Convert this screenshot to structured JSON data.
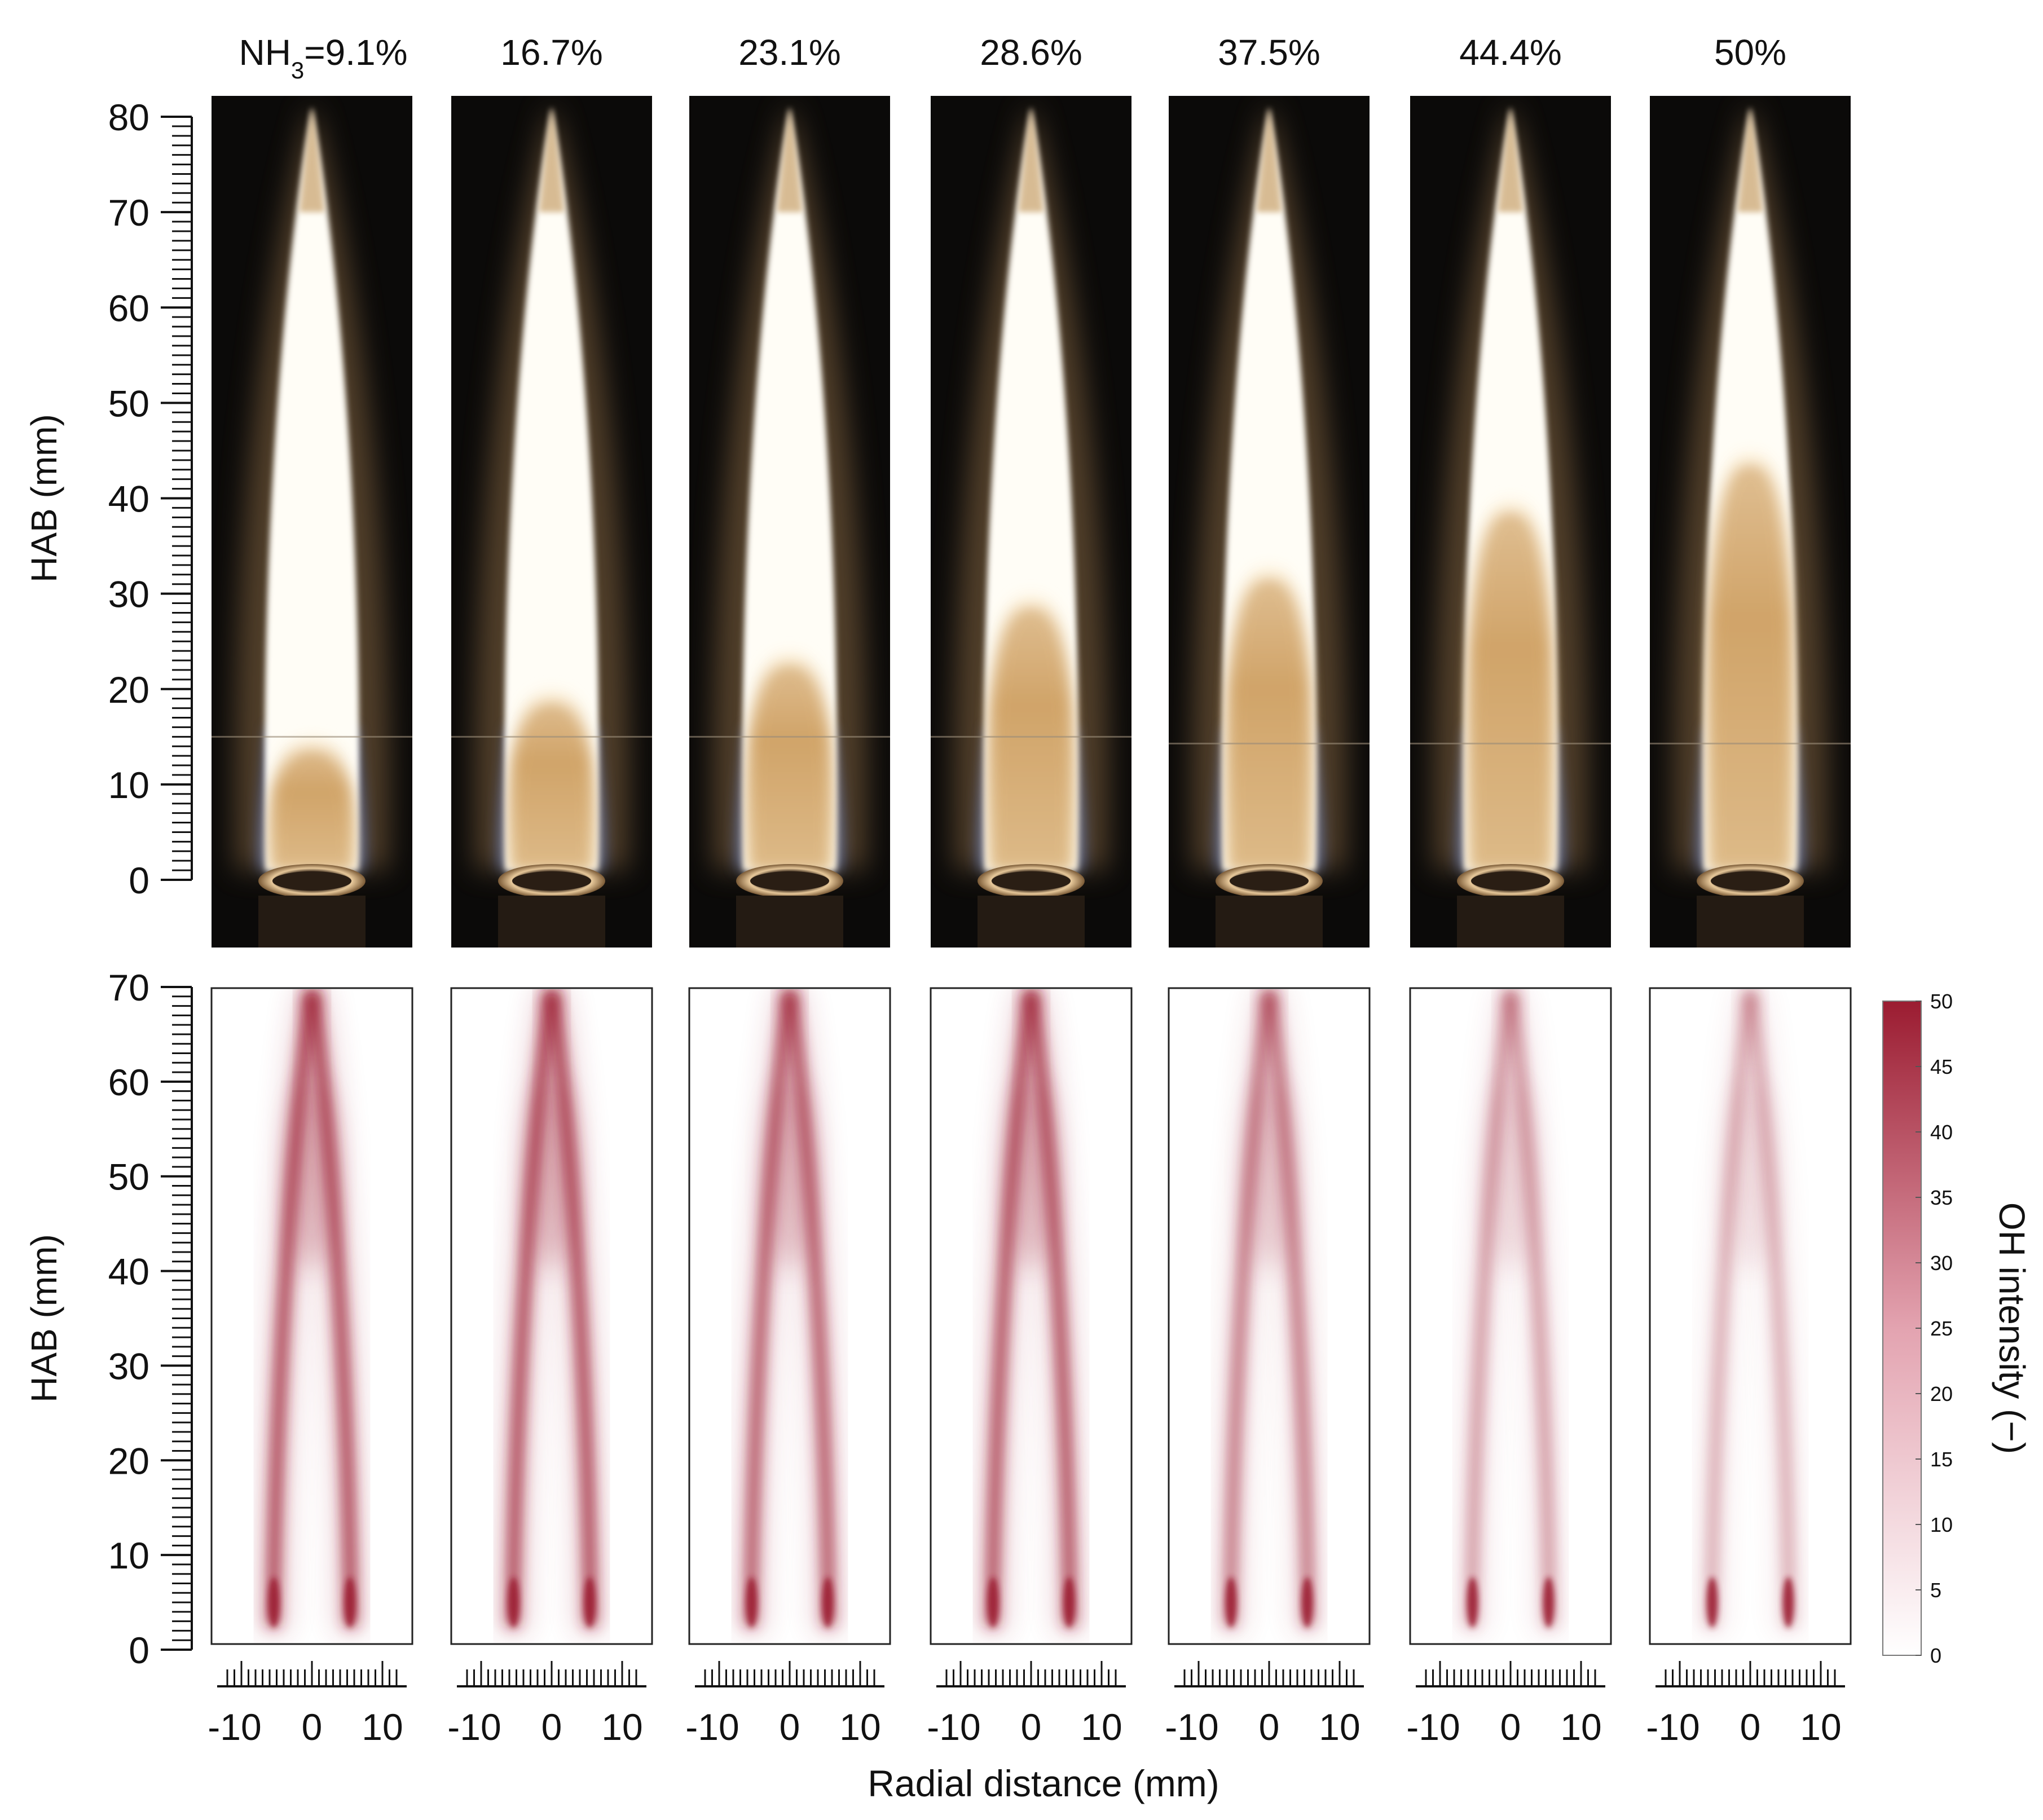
{
  "figure": {
    "columns": [
      {
        "label_prefix": "NH",
        "label_sub": "3",
        "label_main": "=9.1%",
        "x_ticks": [
          "-10",
          "0",
          "10"
        ]
      },
      {
        "label_main": "16.7%",
        "x_ticks": [
          "-10",
          "0",
          "10"
        ]
      },
      {
        "label_main": "23.1%",
        "x_ticks": [
          "-10",
          "0",
          "10"
        ]
      },
      {
        "label_main": "28.6%",
        "x_ticks": [
          "-10",
          "0",
          "10"
        ]
      },
      {
        "label_main": "37.5%",
        "x_ticks": [
          "-10",
          "0",
          "10"
        ]
      },
      {
        "label_main": "44.4%",
        "x_ticks": [
          "-10",
          "0",
          "10"
        ]
      },
      {
        "label_main": "50%",
        "x_ticks": [
          "-10",
          "0",
          "10"
        ]
      }
    ],
    "top_panel": {
      "ylabel": "HAB (mm)",
      "y_ticks": [
        "0",
        "10",
        "20",
        "30",
        "40",
        "50",
        "60",
        "70",
        "80"
      ],
      "ylim": [
        0,
        80
      ],
      "sooty_tip_start_mm": [
        15,
        20,
        24,
        30,
        33,
        40,
        45
      ]
    },
    "bottom_panel": {
      "ylabel": "HAB (mm)",
      "y_ticks": [
        "0",
        "10",
        "20",
        "30",
        "40",
        "50",
        "60",
        "70"
      ],
      "ylim": [
        0,
        70
      ],
      "xlabel": "Radial distance (mm)",
      "peak_intensity_fraction": [
        1.0,
        1.0,
        0.9,
        0.95,
        0.7,
        0.5,
        0.4
      ]
    },
    "colorbar": {
      "label": "OH intensity (−)",
      "ticks": [
        "0",
        "5",
        "10",
        "15",
        "20",
        "25",
        "30",
        "35",
        "40",
        "45",
        "50"
      ],
      "color_low": "#ffffff",
      "color_high": "#9b1c31"
    },
    "colors": {
      "photo_background": "#0b0a09",
      "flame_core": "#fffdf6",
      "flame_tip": "#c7a06a",
      "flame_blue": "#4b6fc9",
      "oh_dark": "#9b1c31"
    }
  }
}
